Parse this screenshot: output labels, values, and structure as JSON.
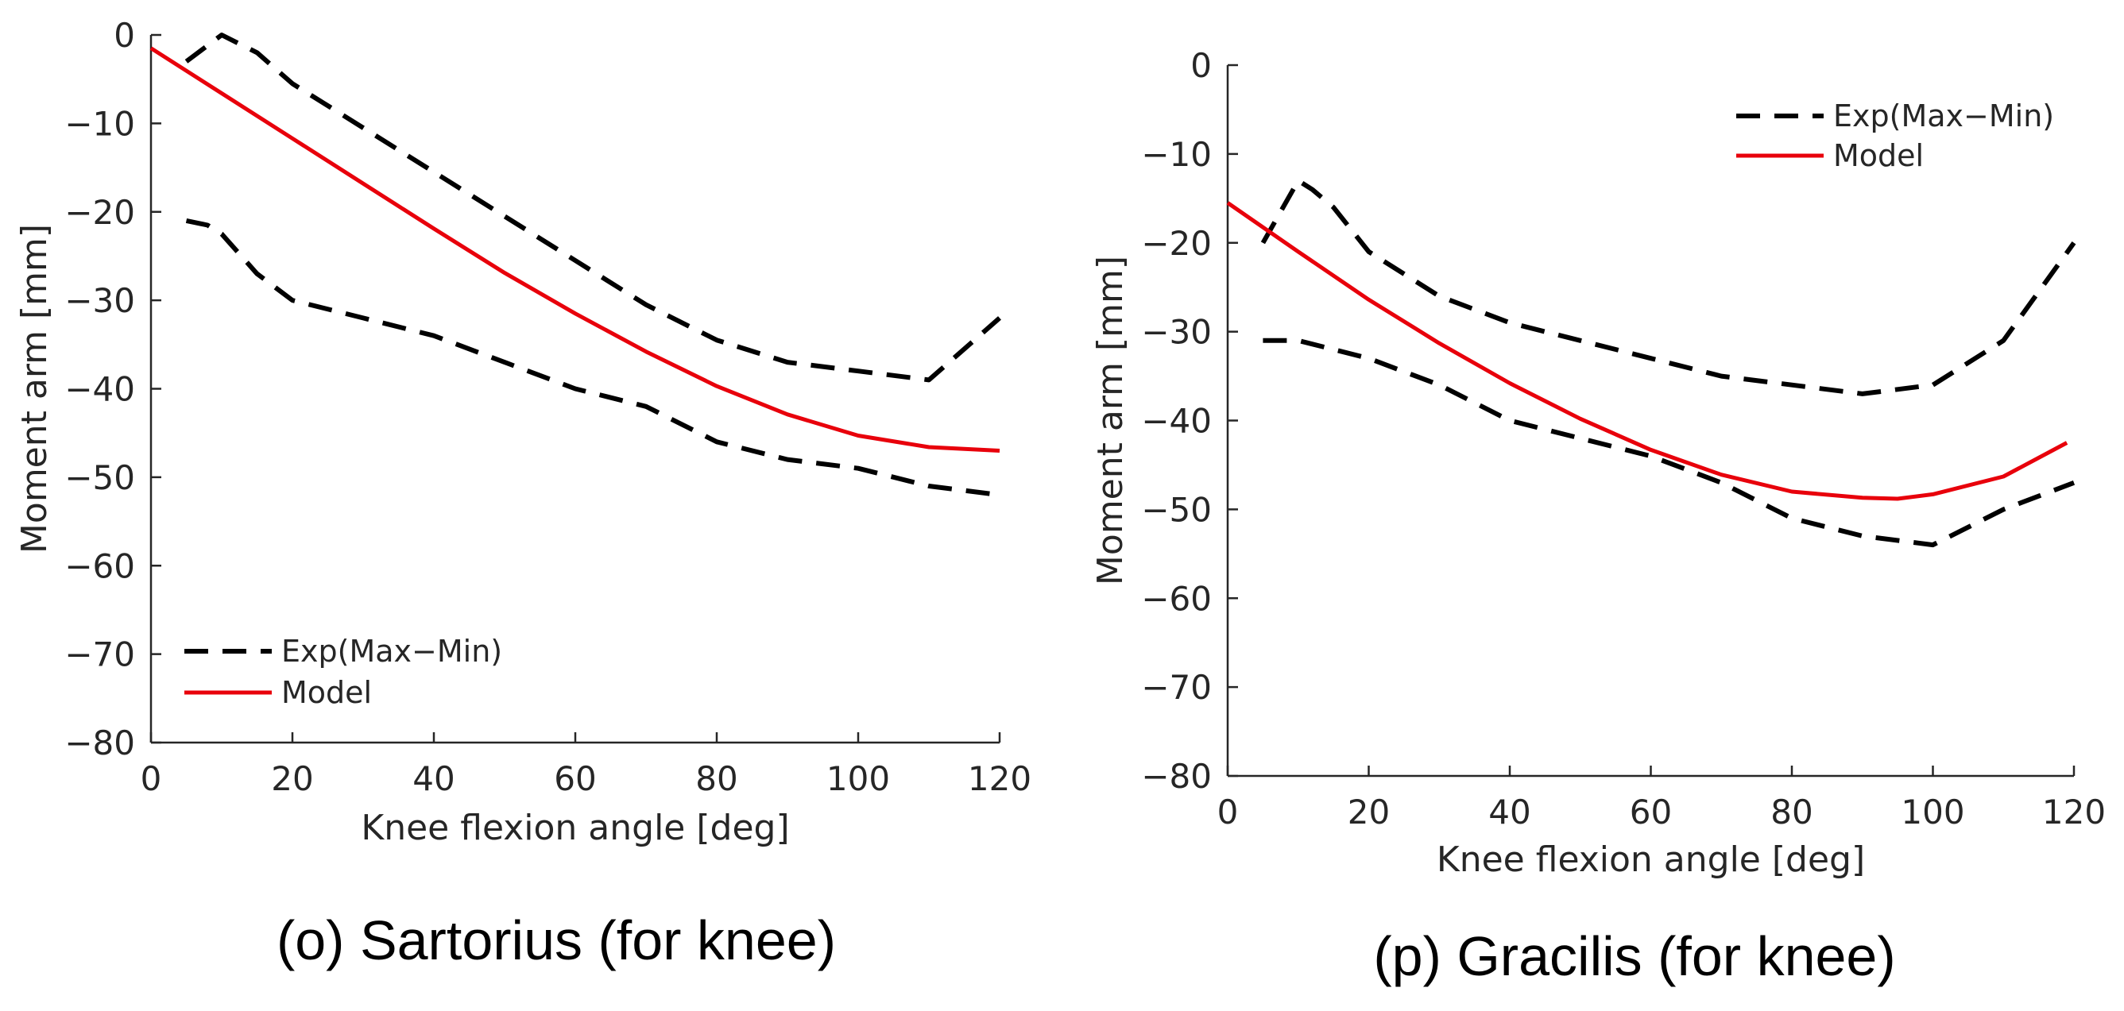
{
  "chart_data": [
    {
      "type": "line",
      "title": "",
      "caption": "(o) Sartorius (for knee)",
      "xlabel": "Knee flexion angle [deg]",
      "ylabel": "Moment arm [mm]",
      "xlim": [
        0,
        120
      ],
      "ylim": [
        -80,
        0
      ],
      "xticks": [
        0,
        20,
        40,
        60,
        80,
        100,
        120
      ],
      "yticks": [
        0,
        -10,
        -20,
        -30,
        -40,
        -50,
        -60,
        -70,
        -80
      ],
      "xtick_labels": [
        "0",
        "20",
        "40",
        "60",
        "80",
        "100",
        "120"
      ],
      "ytick_labels": [
        "0",
        "−10",
        "−20",
        "−30",
        "−40",
        "−50",
        "−60",
        "−70",
        "−80"
      ],
      "grid": false,
      "legend_position": "bottom-left",
      "series": [
        {
          "name": "Exp(Max−Min)",
          "style": "dashed",
          "color": "#000000",
          "x": [
            5,
            10,
            15,
            20,
            25,
            30,
            40,
            50,
            60,
            70,
            80,
            90,
            100,
            110,
            120
          ],
          "y": [
            -3,
            0,
            -2,
            -5.5,
            -8,
            -10.5,
            -15.5,
            -20.5,
            -25.5,
            -30.5,
            -34.5,
            -37,
            -38,
            -39,
            -32
          ]
        },
        {
          "name": "",
          "style": "dashed",
          "color": "#000000",
          "x": [
            5,
            8,
            10,
            15,
            20,
            30,
            40,
            50,
            60,
            70,
            80,
            90,
            100,
            110,
            120
          ],
          "y": [
            -21,
            -21.5,
            -22.5,
            -27,
            -30,
            -32,
            -34,
            -37,
            -40,
            -42,
            -46,
            -48,
            -49,
            -51,
            -52
          ]
        },
        {
          "name": "Model",
          "style": "solid",
          "color": "#e8000b",
          "x": [
            0,
            10,
            20,
            30,
            40,
            50,
            60,
            70,
            80,
            90,
            100,
            110,
            120
          ],
          "y": [
            -1.5,
            -6.6,
            -11.7,
            -16.8,
            -21.9,
            -26.9,
            -31.5,
            -35.8,
            -39.7,
            -42.9,
            -45.3,
            -46.6,
            -47
          ]
        }
      ]
    },
    {
      "type": "line",
      "title": "",
      "caption": "(p) Gracilis (for knee)",
      "xlabel": "Knee flexion angle [deg]",
      "ylabel": "Moment arm [mm]",
      "xlim": [
        0,
        120
      ],
      "ylim": [
        -80,
        0
      ],
      "xticks": [
        0,
        20,
        40,
        60,
        80,
        100,
        120
      ],
      "yticks": [
        0,
        -10,
        -20,
        -30,
        -40,
        -50,
        -60,
        -70,
        -80
      ],
      "xtick_labels": [
        "0",
        "20",
        "40",
        "60",
        "80",
        "100",
        "120"
      ],
      "ytick_labels": [
        "0",
        "−10",
        "−20",
        "−30",
        "−40",
        "−50",
        "−60",
        "−70",
        "−80"
      ],
      "grid": false,
      "legend_position": "top-right",
      "series": [
        {
          "name": "Exp(Max−Min)",
          "style": "dashed",
          "color": "#000000",
          "x": [
            5,
            10,
            12,
            15,
            20,
            30,
            40,
            50,
            60,
            70,
            80,
            90,
            100,
            110,
            120
          ],
          "y": [
            -20,
            -13,
            -14,
            -16,
            -21,
            -26,
            -29,
            -31,
            -33,
            -35,
            -36,
            -37,
            -36,
            -31,
            -20
          ]
        },
        {
          "name": "",
          "style": "dashed",
          "color": "#000000",
          "x": [
            5,
            10,
            20,
            30,
            40,
            50,
            60,
            70,
            80,
            90,
            100,
            110,
            120
          ],
          "y": [
            -31,
            -31,
            -33,
            -36,
            -40,
            -42,
            -44,
            -47,
            -51,
            -53,
            -54,
            -50,
            -47
          ]
        },
        {
          "name": "Model",
          "style": "solid",
          "color": "#e8000b",
          "x": [
            0,
            10,
            20,
            30,
            40,
            50,
            60,
            70,
            80,
            90,
            95,
            100,
            110,
            119
          ],
          "y": [
            -15.5,
            -21,
            -26.4,
            -31.3,
            -35.8,
            -39.8,
            -43.3,
            -46.1,
            -48,
            -48.7,
            -48.8,
            -48.3,
            -46.3,
            -42.5
          ]
        }
      ]
    }
  ]
}
